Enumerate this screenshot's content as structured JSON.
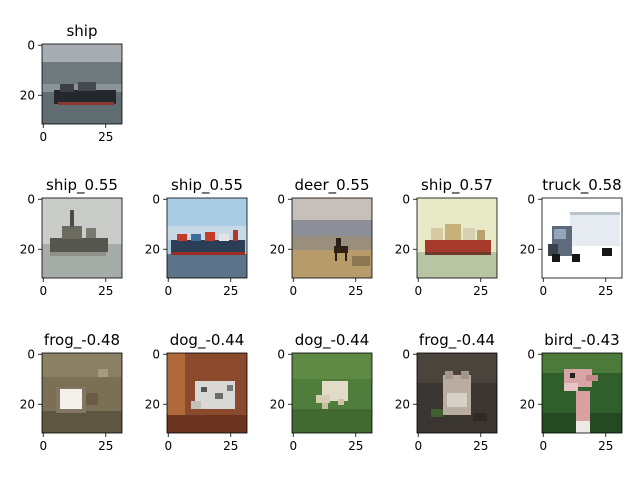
{
  "figure": {
    "panels": [
      {
        "title": "ship",
        "image": "ship-harbor-thumbnail"
      },
      {
        "title": "ship_0.55",
        "image": "ship-tugboat-thumbnail"
      },
      {
        "title": "ship_0.55",
        "image": "ship-cargo-thumbnail"
      },
      {
        "title": "deer_0.55",
        "image": "deer-field-thumbnail"
      },
      {
        "title": "ship_0.57",
        "image": "ship-red-hull-thumbnail"
      },
      {
        "title": "truck_0.58",
        "image": "truck-white-trailer-thumbnail"
      },
      {
        "title": "frog_-0.48",
        "image": "frog-brown-thumbnail"
      },
      {
        "title": "dog_-0.44",
        "image": "dog-lying-thumbnail"
      },
      {
        "title": "dog_-0.44",
        "image": "dog-grass-thumbnail"
      },
      {
        "title": "frog_-0.44",
        "image": "frog-dark-thumbnail"
      },
      {
        "title": "bird_-0.43",
        "image": "bird-ostrich-thumbnail"
      }
    ]
  },
  "chart_data": {
    "type": "image-grid",
    "grid": {
      "rows": 3,
      "cols": 5
    },
    "image_extent": [
      0,
      32
    ],
    "x_ticks": [
      "0",
      "25"
    ],
    "y_ticks": [
      "0",
      "20"
    ],
    "query": {
      "label": "ship"
    },
    "most_similar": [
      {
        "label": "ship",
        "score": 0.55
      },
      {
        "label": "ship",
        "score": 0.55
      },
      {
        "label": "deer",
        "score": 0.55
      },
      {
        "label": "ship",
        "score": 0.57
      },
      {
        "label": "truck",
        "score": 0.58
      }
    ],
    "least_similar": [
      {
        "label": "frog",
        "score": -0.48
      },
      {
        "label": "dog",
        "score": -0.44
      },
      {
        "label": "dog",
        "score": -0.44
      },
      {
        "label": "frog",
        "score": -0.44
      },
      {
        "label": "bird",
        "score": -0.43
      }
    ]
  }
}
